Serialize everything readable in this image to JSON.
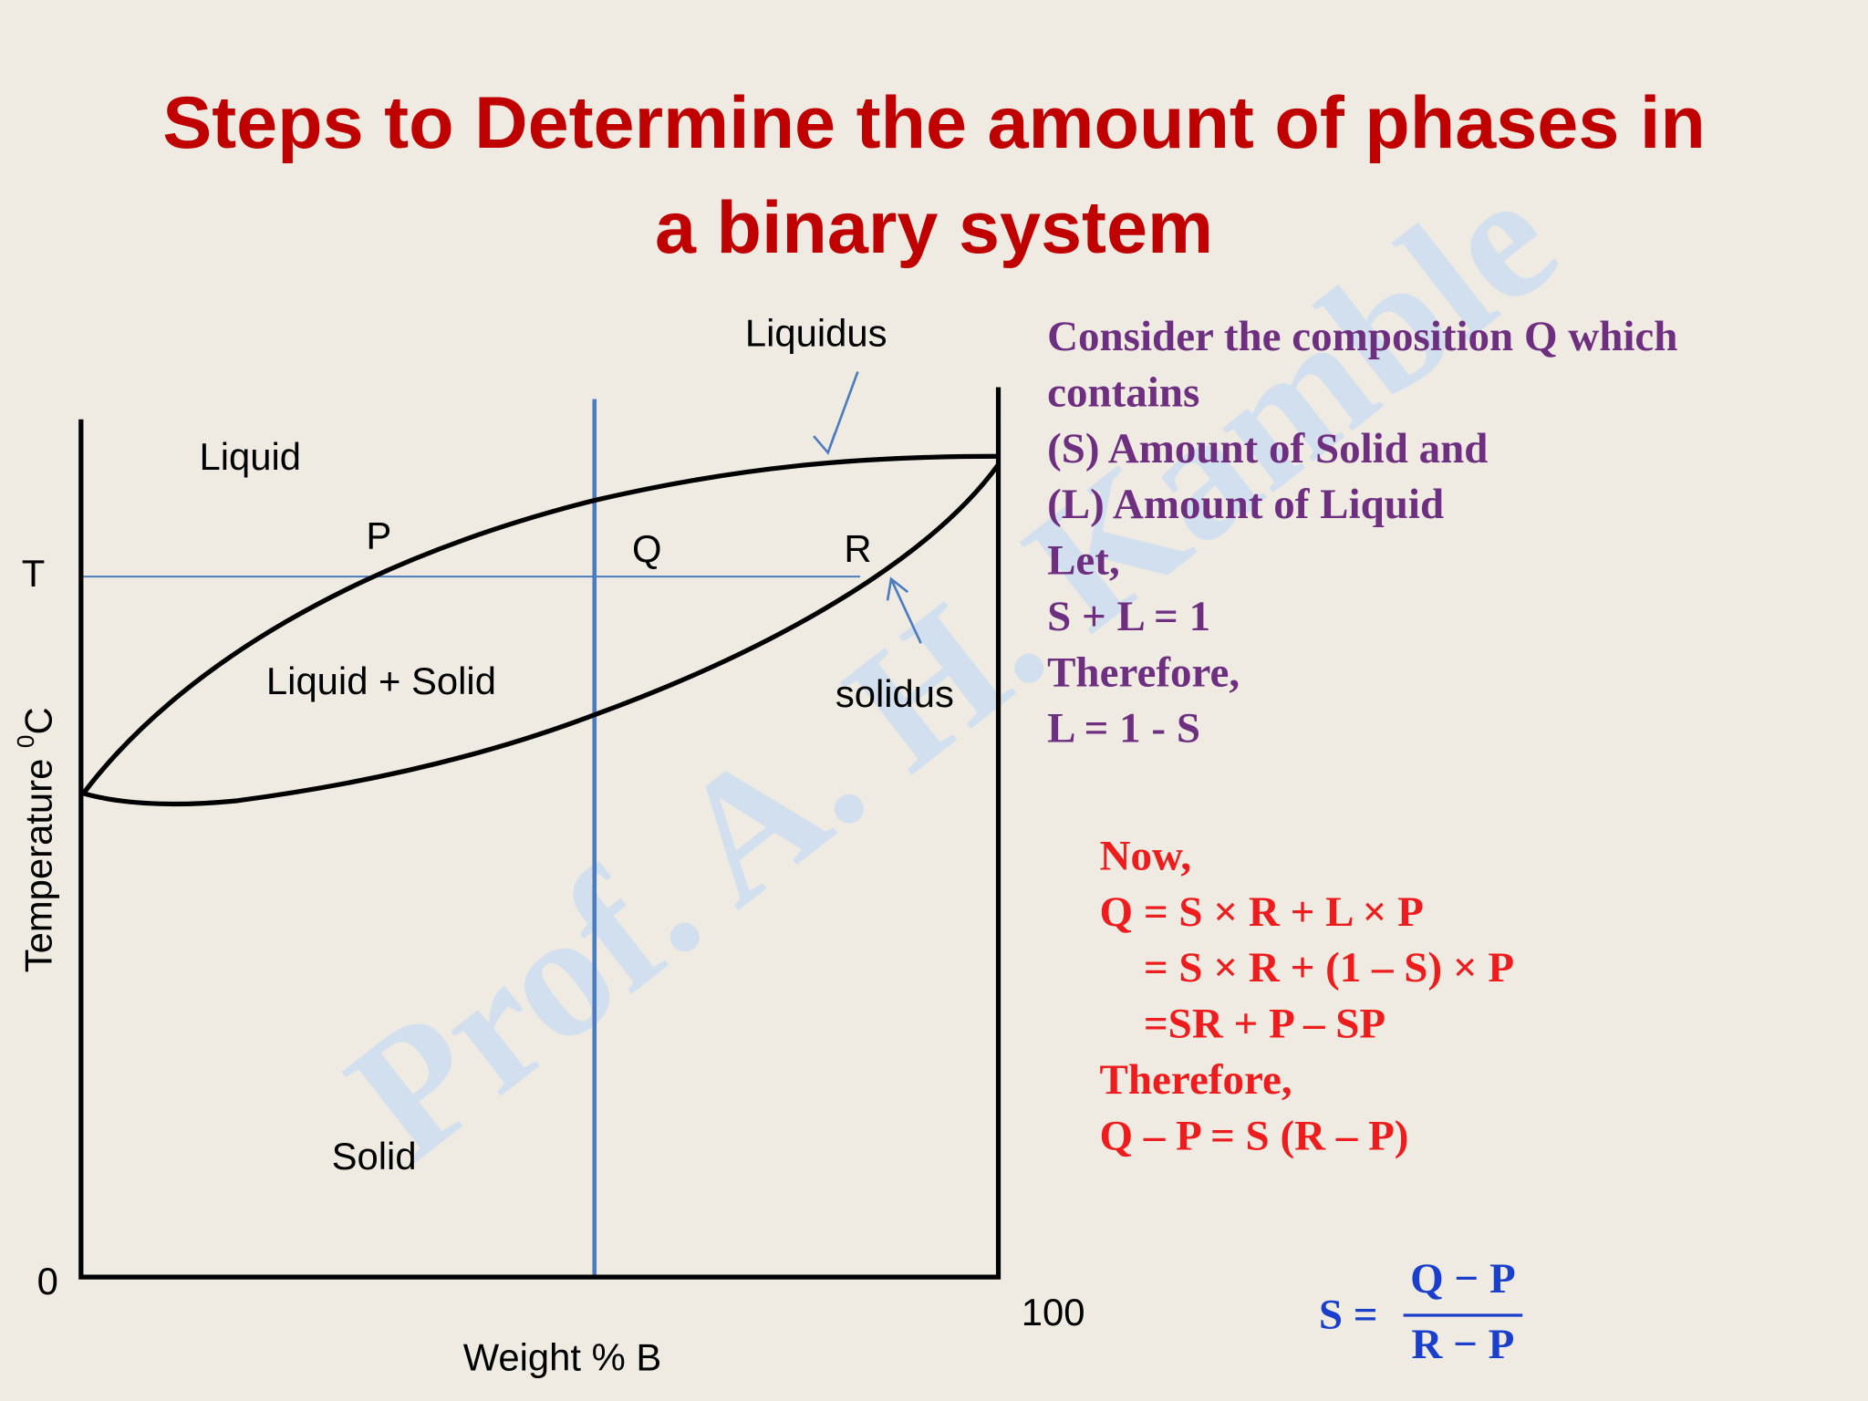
{
  "title": [
    "Steps to Determine the amount of phases in",
    "a binary system"
  ],
  "watermark": "Prof. A. H. Kamble",
  "diagram": {
    "liquidus_label": "Liquidus",
    "liquid_label": "Liquid",
    "p_label": "P",
    "q_label": "Q",
    "r_label": "R",
    "t_label": "T",
    "two_phase_label": "Liquid + Solid",
    "solidus_label": "solidus",
    "solid_label": "Solid",
    "origin_label": "0",
    "end_label": "100",
    "x_axis_label": "Weight % B",
    "y_axis_label": {
      "text": "Temperature ",
      "superscript": "0",
      "unit": "C"
    }
  },
  "consider": [
    "Consider the composition Q which",
    "contains",
    "(S) Amount of Solid and",
    "(L) Amount of Liquid",
    "Let,",
    "S + L = 1",
    "Therefore,",
    "L = 1 - S"
  ],
  "derivation": [
    "Now,",
    "Q = S × R + L × P",
    "= S × R + (1 – S) × P",
    "=SR + P – SP",
    "Therefore,",
    "Q – P = S (R – P)"
  ],
  "formula": {
    "lhs": "S =",
    "numerator": "Q − P",
    "denominator": "R − P"
  }
}
